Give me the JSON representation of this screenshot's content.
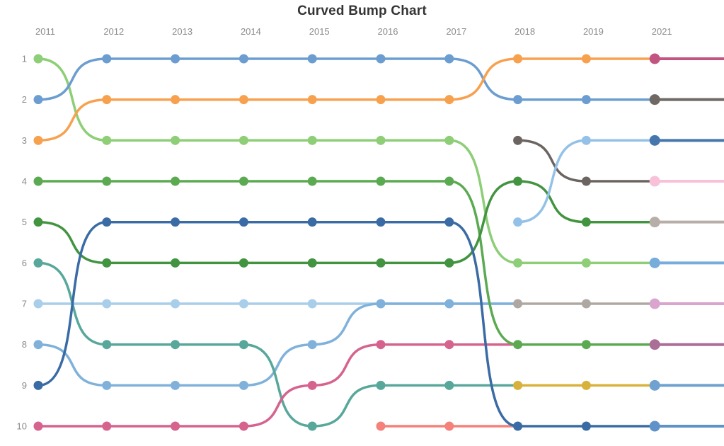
{
  "chart_data": {
    "type": "line",
    "subtype": "curved-bump-chart",
    "title": "Curved Bump Chart",
    "x_labels": [
      "2011",
      "2012",
      "2013",
      "2014",
      "2015",
      "2016",
      "2017",
      "2018",
      "2019",
      "2021"
    ],
    "rank_labels": [
      "1",
      "2",
      "3",
      "4",
      "5",
      "6",
      "7",
      "8",
      "9",
      "10"
    ],
    "axis_label_color": "#8b8b8b",
    "grid": "off",
    "legend": "none",
    "note": "lines connect year-index/rank positions; 'tail' is a dotless line extension to the next year's slot; entrants_2021 are new colored dots at the 2021 column whose lines run to the right edge",
    "series": [
      {
        "name": "sky-blue",
        "color": "#A8CEEA",
        "dots": [
          [
            0,
            7
          ],
          [
            1,
            7
          ],
          [
            2,
            7
          ],
          [
            3,
            7
          ],
          [
            4,
            7
          ]
        ],
        "tail": [
          7,
          7
        ]
      },
      {
        "name": "medium-blue",
        "color": "#7FB1DA",
        "dots": [
          [
            0,
            8
          ],
          [
            1,
            9
          ],
          [
            2,
            9
          ],
          [
            3,
            9
          ],
          [
            4,
            8
          ],
          [
            5,
            7
          ],
          [
            6,
            7
          ]
        ],
        "tail": [
          7,
          7
        ]
      },
      {
        "name": "teal",
        "color": "#58A79B",
        "dots": [
          [
            0,
            6
          ],
          [
            1,
            8
          ],
          [
            2,
            8
          ],
          [
            3,
            8
          ],
          [
            4,
            10
          ],
          [
            5,
            9
          ],
          [
            6,
            9
          ]
        ],
        "tail": [
          7,
          9
        ]
      },
      {
        "name": "pink",
        "color": "#D5638E",
        "dots": [
          [
            0,
            10
          ],
          [
            1,
            10
          ],
          [
            2,
            10
          ],
          [
            3,
            10
          ],
          [
            4,
            9
          ],
          [
            5,
            8
          ],
          [
            6,
            8
          ]
        ],
        "tail": [
          7,
          8
        ]
      },
      {
        "name": "salmon",
        "color": "#F4817A",
        "dots": [
          [
            5,
            10
          ],
          [
            6,
            10
          ]
        ],
        "tail": [
          7,
          10
        ]
      },
      {
        "name": "light-green",
        "color": "#8DCE77",
        "dots": [
          [
            0,
            1
          ],
          [
            1,
            3
          ],
          [
            2,
            3
          ],
          [
            3,
            3
          ],
          [
            4,
            3
          ],
          [
            5,
            3
          ],
          [
            6,
            3
          ],
          [
            7,
            6
          ],
          [
            8,
            6
          ]
        ],
        "tail": [
          9,
          6
        ]
      },
      {
        "name": "green",
        "color": "#5BAA52",
        "dots": [
          [
            0,
            4
          ],
          [
            1,
            4
          ],
          [
            2,
            4
          ],
          [
            3,
            4
          ],
          [
            4,
            4
          ],
          [
            5,
            4
          ],
          [
            6,
            4
          ],
          [
            7,
            8
          ],
          [
            8,
            8
          ]
        ],
        "tail": [
          9,
          8
        ]
      },
      {
        "name": "forest-green",
        "color": "#429441",
        "dots": [
          [
            0,
            5
          ],
          [
            1,
            6
          ],
          [
            2,
            6
          ],
          [
            3,
            6
          ],
          [
            4,
            6
          ],
          [
            5,
            6
          ],
          [
            6,
            6
          ],
          [
            7,
            4
          ],
          [
            8,
            5
          ]
        ],
        "tail": [
          9,
          5
        ]
      },
      {
        "name": "navy-blue",
        "color": "#3A6BA4",
        "dots": [
          [
            0,
            9
          ],
          [
            1,
            5
          ],
          [
            2,
            5
          ],
          [
            3,
            5
          ],
          [
            4,
            5
          ],
          [
            5,
            5
          ],
          [
            6,
            5
          ],
          [
            7,
            10
          ],
          [
            8,
            10
          ]
        ],
        "tail": [
          9,
          10
        ]
      },
      {
        "name": "steel-blue",
        "color": "#6B9DD0",
        "dots": [
          [
            0,
            2
          ],
          [
            1,
            1
          ],
          [
            2,
            1
          ],
          [
            3,
            1
          ],
          [
            4,
            1
          ],
          [
            5,
            1
          ],
          [
            6,
            1
          ],
          [
            7,
            2
          ],
          [
            8,
            2
          ]
        ],
        "tail": [
          9,
          2
        ]
      },
      {
        "name": "orange",
        "color": "#F7A14E",
        "dots": [
          [
            0,
            3
          ],
          [
            1,
            2
          ],
          [
            2,
            2
          ],
          [
            3,
            2
          ],
          [
            4,
            2
          ],
          [
            5,
            2
          ],
          [
            6,
            2
          ],
          [
            7,
            1
          ],
          [
            8,
            1
          ]
        ],
        "tail": [
          9,
          1
        ]
      },
      {
        "name": "dark-gray",
        "color": "#6B6460",
        "dots": [
          [
            7,
            3
          ],
          [
            8,
            4
          ]
        ],
        "tail": [
          9,
          4
        ]
      },
      {
        "name": "pale-blue",
        "color": "#93C1E8",
        "dots": [
          [
            7,
            5
          ],
          [
            8,
            3
          ]
        ],
        "tail": [
          9,
          3
        ]
      },
      {
        "name": "light-gray",
        "color": "#AFA8A2",
        "dots": [
          [
            7,
            7
          ],
          [
            8,
            7
          ]
        ],
        "tail": [
          9,
          7
        ]
      },
      {
        "name": "gold",
        "color": "#D8B13C",
        "dots": [
          [
            7,
            9
          ],
          [
            8,
            9
          ]
        ],
        "tail": [
          9,
          9
        ]
      }
    ],
    "entrants_2021": [
      {
        "rank": 1,
        "color": "#C2557F"
      },
      {
        "rank": 2,
        "color": "#6F6864"
      },
      {
        "rank": 3,
        "color": "#4577AD"
      },
      {
        "rank": 4,
        "color": "#F8C1D8"
      },
      {
        "rank": 5,
        "color": "#B7AEAA"
      },
      {
        "rank": 6,
        "color": "#77ADDC"
      },
      {
        "rank": 7,
        "color": "#D9A5CE"
      },
      {
        "rank": 8,
        "color": "#AB6F97"
      },
      {
        "rank": 9,
        "color": "#6FA1D1"
      },
      {
        "rank": 10,
        "color": "#5F93C7"
      }
    ]
  }
}
